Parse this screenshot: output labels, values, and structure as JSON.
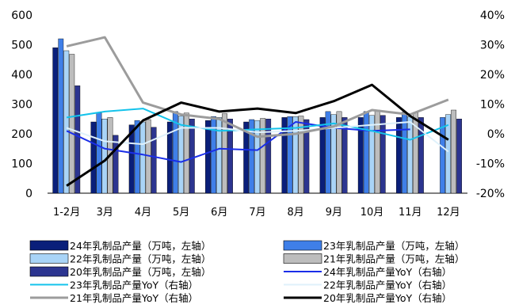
{
  "chart_data": {
    "type": "bar+line",
    "categories": [
      "1-2月",
      "3月",
      "4月",
      "5月",
      "6月",
      "7月",
      "8月",
      "9月",
      "10月",
      "11月",
      "12月"
    ],
    "left_axis": {
      "ticks": [
        "0",
        "100",
        "200",
        "300",
        "400",
        "500",
        "600"
      ],
      "ylim": [
        0,
        600
      ]
    },
    "right_axis": {
      "ticks": [
        "-20%",
        "-10%",
        "0%",
        "10%",
        "20%",
        "30%",
        "40%"
      ],
      "ylim": [
        -20,
        40
      ]
    },
    "bar_series": [
      {
        "name": "24年乳制品产量（万吨，左轴）",
        "color": "#0a1f7a",
        "values": [
          490,
          240,
          230,
          240,
          245,
          240,
          255,
          255,
          255,
          255,
          null
        ]
      },
      {
        "name": "23年乳制品产量（万吨，左轴）",
        "color": "#3f7fe8",
        "values": [
          520,
          270,
          245,
          275,
          258,
          248,
          258,
          275,
          275,
          273,
          255
        ]
      },
      {
        "name": "22年乳制品产量（万吨，左轴）",
        "color": "#a9d4f7",
        "values": [
          480,
          250,
          240,
          260,
          255,
          245,
          258,
          265,
          262,
          258,
          265
        ]
      },
      {
        "name": "21年乳制品产量（万吨，左轴）",
        "color": "#bdbdbd",
        "values": [
          468,
          255,
          248,
          270,
          268,
          252,
          260,
          275,
          280,
          272,
          280
        ]
      },
      {
        "name": "20年乳制品产量（万吨，左轴）",
        "color": "#2c3590",
        "values": [
          362,
          195,
          222,
          250,
          250,
          250,
          248,
          255,
          262,
          255,
          250
        ]
      }
    ],
    "line_series": [
      {
        "name": "24年乳制品产量YoY（右轴）",
        "color": "#1a2ee8",
        "values": [
          1,
          -5,
          -7,
          -9.5,
          -5,
          -5.5,
          4,
          2,
          1,
          1.5,
          null
        ]
      },
      {
        "name": "23年乳制品产量YoY（右轴）",
        "color": "#14c3eb",
        "values": [
          5.5,
          7.5,
          8.5,
          3,
          1,
          1.5,
          2,
          3.5,
          1,
          -2,
          3
        ]
      },
      {
        "name": "22年乳制品产量YoY（右轴）",
        "color": "#dff1fb",
        "values": [
          2,
          -2.5,
          -3.5,
          2,
          2,
          0.5,
          1,
          2,
          3,
          4,
          -6
        ]
      },
      {
        "name": "21年乳制品产量YoY（右轴）",
        "color": "#9c9c9c",
        "values": [
          29.5,
          32.5,
          10.5,
          6.5,
          5,
          -1,
          0,
          2.5,
          8,
          6.5,
          11.5
        ]
      },
      {
        "name": "20年乳制品产量YoY（右轴）",
        "color": "#000000",
        "values": [
          -17.5,
          -9,
          4.5,
          10.5,
          7.5,
          8.5,
          7,
          11,
          16.5,
          6,
          -2
        ]
      }
    ],
    "legend_placement": "bottom",
    "grid": false
  }
}
